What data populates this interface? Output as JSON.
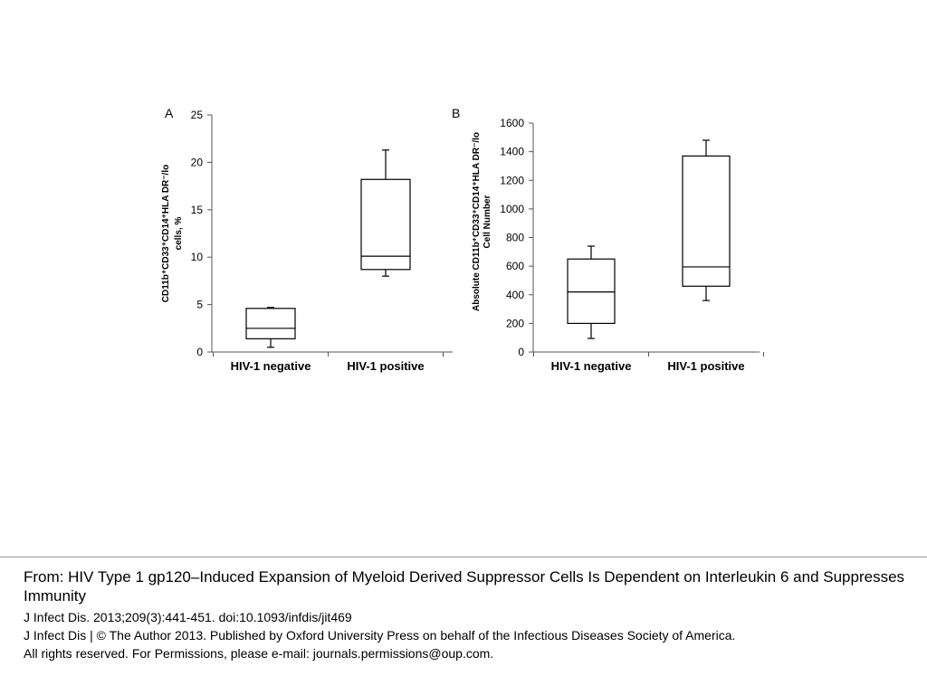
{
  "chart_data": [
    {
      "type": "box",
      "panel_label": "A",
      "ylabel_lines": [
        "CD11b⁺CD33⁺CD14⁺HLA DR⁻/lo",
        "cells, %"
      ],
      "categories": [
        "HIV-1 negative",
        "HIV-1 positive"
      ],
      "ylim": [
        0,
        25
      ],
      "yticks": [
        0,
        5,
        10,
        15,
        20,
        25
      ],
      "boxes": [
        {
          "min": 0.5,
          "q1": 1.4,
          "median": 2.5,
          "q3": 4.6,
          "max": 4.7
        },
        {
          "min": 8.0,
          "q1": 8.7,
          "median": 10.1,
          "q3": 18.2,
          "max": 21.3
        }
      ]
    },
    {
      "type": "box",
      "panel_label": "B",
      "ylabel_lines": [
        "Absolute CD11b⁺CD33⁺CD14⁺HLA DR⁻/lo",
        "Cell Number"
      ],
      "categories": [
        "HIV-1 negative",
        "HIV-1 positive"
      ],
      "ylim": [
        0,
        1600
      ],
      "yticks": [
        0,
        200,
        400,
        600,
        800,
        1000,
        1200,
        1400,
        1600
      ],
      "boxes": [
        {
          "min": 95,
          "q1": 200,
          "median": 420,
          "q3": 650,
          "max": 740
        },
        {
          "min": 360,
          "q1": 460,
          "median": 595,
          "q3": 1370,
          "max": 1480
        }
      ]
    }
  ],
  "caption": {
    "title": "From: HIV Type 1 gp120–Induced Expansion of Myeloid Derived Suppressor Cells Is Dependent on Interleukin 6 and Suppresses Immunity",
    "citation": "J Infect Dis. 2013;209(3):441-451. doi:10.1093/infdis/jit469",
    "copyright_1": "J Infect Dis | © The Author 2013. Published by Oxford University Press on behalf of the Infectious Diseases Society of America.",
    "copyright_2": "All rights reserved. For Permissions, please e-mail: journals.permissions@oup.com."
  }
}
